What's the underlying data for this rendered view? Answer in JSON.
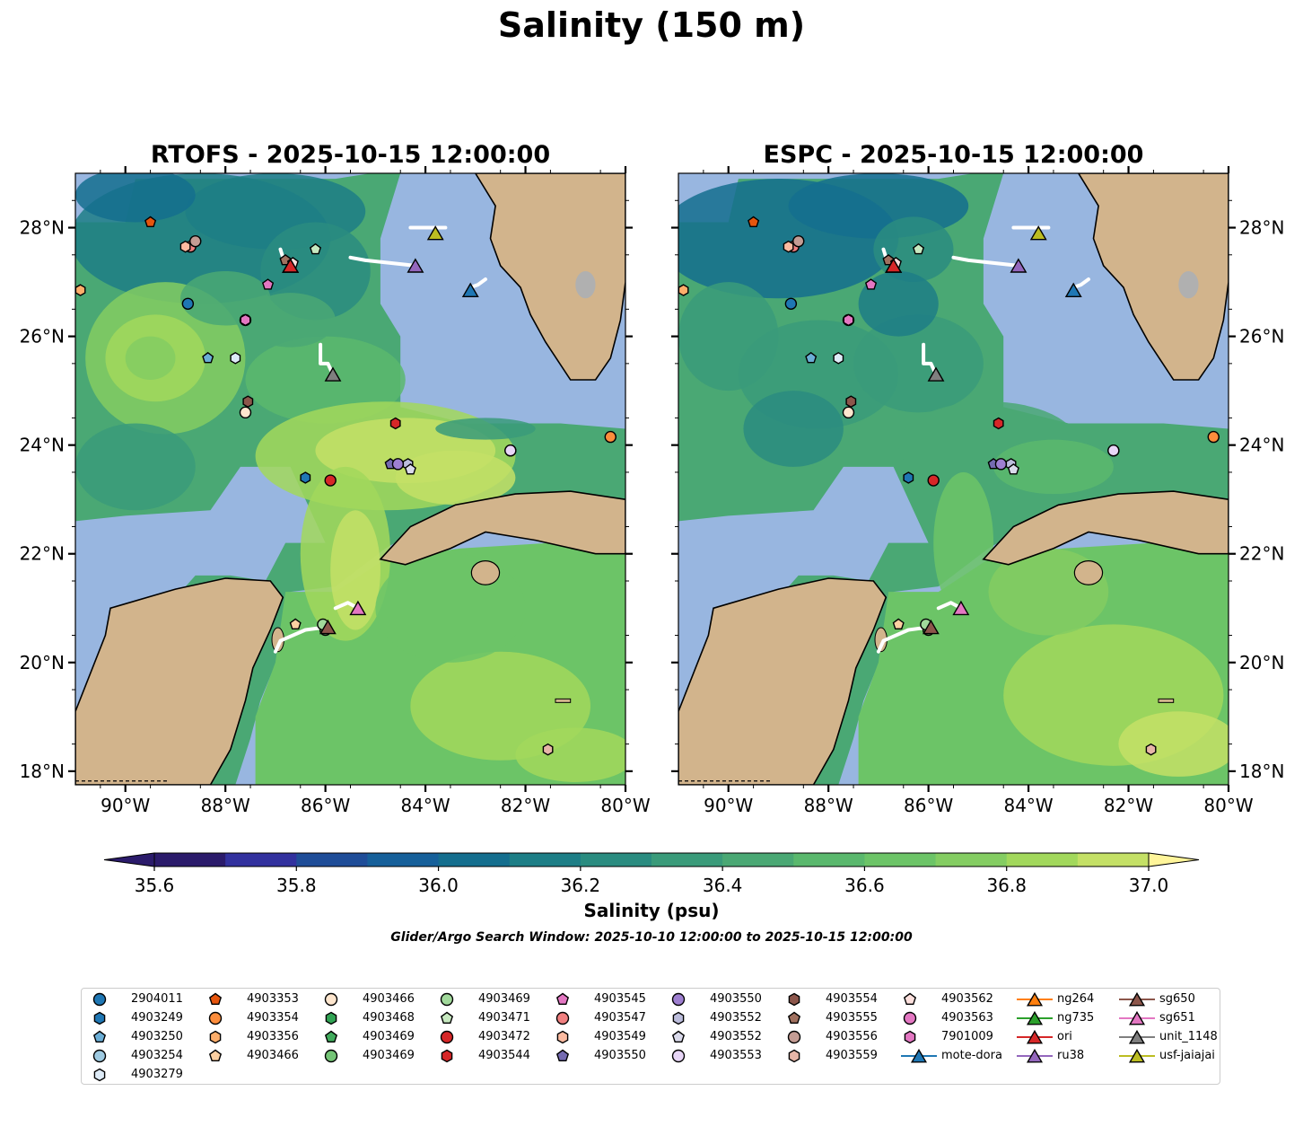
{
  "title": "Salinity (150 m)",
  "panels": [
    {
      "title": "RTOFS - 2025-10-15 12:00:00"
    },
    {
      "title": "ESPC - 2025-10-15 12:00:00"
    }
  ],
  "colors": {
    "ocean_fill": "#98b6e0",
    "land": "#d2b48c",
    "track": "#ffffff",
    "colormap": [
      "#2b1b6b",
      "#32319e",
      "#1f4d98",
      "#16609a",
      "#146e8e",
      "#1d7e86",
      "#2a8c80",
      "#3a9b7a",
      "#4aa874",
      "#5ab86d",
      "#6cc467",
      "#84cd62",
      "#a2d85c",
      "#c4e066",
      "#fff59a"
    ]
  },
  "chart_data": {
    "type": "filled-contour-map",
    "colorbar": {
      "label": "Salinity (psu)",
      "min": 35.6,
      "max": 37.0,
      "levels": [
        35.6,
        35.7,
        35.8,
        35.9,
        36.0,
        36.1,
        36.2,
        36.3,
        36.4,
        36.5,
        36.6,
        36.7,
        36.8,
        36.9,
        37.0
      ],
      "ticks": [
        "35.6",
        "35.8",
        "36.0",
        "36.2",
        "36.4",
        "36.6",
        "36.8",
        "37.0"
      ],
      "extend": "both"
    },
    "map_extent": {
      "lon": [
        -91,
        -80
      ],
      "lat": [
        17.75,
        29
      ]
    },
    "lon_ticks": [
      {
        "v": -90,
        "label": "90°W"
      },
      {
        "v": -88,
        "label": "88°W"
      },
      {
        "v": -86,
        "label": "86°W"
      },
      {
        "v": -84,
        "label": "84°W"
      },
      {
        "v": -82,
        "label": "82°W"
      },
      {
        "v": -80,
        "label": "80°W"
      }
    ],
    "lat_ticks": [
      {
        "v": 18,
        "label": "18°N"
      },
      {
        "v": 20,
        "label": "20°N"
      },
      {
        "v": 22,
        "label": "22°N"
      },
      {
        "v": 24,
        "label": "24°N"
      },
      {
        "v": 26,
        "label": "26°N"
      },
      {
        "v": 28,
        "label": "28°N"
      }
    ],
    "search_window": "Glider/Argo Search Window: 2025-10-10 12:00:00 to 2025-10-15 12:00:00",
    "platforms": [
      {
        "id": "2904011",
        "marker": "circle",
        "color": "#1f77b4",
        "lon": -88.75,
        "lat": 26.6
      },
      {
        "id": "4903249",
        "marker": "hexagon",
        "color": "#1f77b4",
        "lon": -86.4,
        "lat": 23.4
      },
      {
        "id": "4903250",
        "marker": "pentagon",
        "color": "#6baed6",
        "lon": -88.35,
        "lat": 25.6
      },
      {
        "id": "4903254",
        "marker": "circle",
        "color": "#9ecae1",
        "lon": -82.3,
        "lat": 23.9
      },
      {
        "id": "4903279",
        "marker": "hexagon",
        "color": "#deebf7",
        "lon": -87.8,
        "lat": 25.6
      },
      {
        "id": "4903353",
        "marker": "pentagon",
        "color": "#e6550d",
        "lon": -89.5,
        "lat": 28.1
      },
      {
        "id": "4903354",
        "marker": "circle",
        "color": "#fd8d3c",
        "lon": -80.3,
        "lat": 24.15
      },
      {
        "id": "4903356",
        "marker": "hexagon",
        "color": "#fdae6b",
        "lon": -90.9,
        "lat": 26.85
      },
      {
        "id": "4903466",
        "marker": "pentagon",
        "color": "#fdd0a2",
        "lon": -86.6,
        "lat": 20.7
      },
      {
        "id": "4903466",
        "marker": "circle",
        "color": "#fee6ce",
        "lon": -87.6,
        "lat": 24.6
      },
      {
        "id": "4903468",
        "marker": "hexagon",
        "color": "#31a354",
        "lon": -86.0,
        "lat": 20.6
      },
      {
        "id": "4903469",
        "marker": "pentagon",
        "color": "#41ab5d",
        "lon": -86.0,
        "lat": 20.65
      },
      {
        "id": "4903469",
        "marker": "circle",
        "color": "#74c476",
        "lon": -86.0,
        "lat": 20.6
      },
      {
        "id": "4903469",
        "marker": "circle",
        "color": "#a1d99b",
        "lon": -86.05,
        "lat": 20.7
      },
      {
        "id": "4903471",
        "marker": "pentagon",
        "color": "#c7e9c0",
        "lon": -86.2,
        "lat": 27.6
      },
      {
        "id": "4903472",
        "marker": "circle",
        "color": "#d62728",
        "lon": -85.9,
        "lat": 23.35
      },
      {
        "id": "4903544",
        "marker": "hexagon",
        "color": "#d62728",
        "lon": -84.6,
        "lat": 24.4
      },
      {
        "id": "4903545",
        "marker": "pentagon",
        "color": "#e377c2",
        "lon": -87.15,
        "lat": 26.95
      },
      {
        "id": "4903547",
        "marker": "circle",
        "color": "#f08080",
        "lon": -88.7,
        "lat": 27.65
      },
      {
        "id": "4903549",
        "marker": "hexagon",
        "color": "#fcbba1",
        "lon": -88.8,
        "lat": 27.65
      },
      {
        "id": "4903550",
        "marker": "pentagon",
        "color": "#756bb1",
        "lon": -84.7,
        "lat": 23.65
      },
      {
        "id": "4903550",
        "marker": "circle",
        "color": "#9e7fd0",
        "lon": -84.55,
        "lat": 23.65
      },
      {
        "id": "4903552",
        "marker": "hexagon",
        "color": "#bcbddc",
        "lon": -84.35,
        "lat": 23.65
      },
      {
        "id": "4903552",
        "marker": "pentagon",
        "color": "#dadaeb",
        "lon": -84.3,
        "lat": 23.55
      },
      {
        "id": "4903553",
        "marker": "circle",
        "color": "#e8d6f7",
        "lon": -82.3,
        "lat": 23.9
      },
      {
        "id": "4903554",
        "marker": "hexagon",
        "color": "#8c564b",
        "lon": -87.55,
        "lat": 24.8
      },
      {
        "id": "4903555",
        "marker": "pentagon",
        "color": "#a0705f",
        "lon": -86.8,
        "lat": 27.4
      },
      {
        "id": "4903556",
        "marker": "circle",
        "color": "#c49c94",
        "lon": -88.6,
        "lat": 27.75
      },
      {
        "id": "4903559",
        "marker": "hexagon",
        "color": "#e7b6a8",
        "lon": -81.55,
        "lat": 18.4
      },
      {
        "id": "4903562",
        "marker": "pentagon",
        "color": "#fde0dd",
        "lon": -86.65,
        "lat": 27.35
      },
      {
        "id": "4903563",
        "marker": "circle",
        "color": "#e377c2",
        "lon": -87.6,
        "lat": 26.3
      },
      {
        "id": "7901009",
        "marker": "hexagon",
        "color": "#e377c2",
        "lon": -87.6,
        "lat": 26.3
      },
      {
        "id": "mote-dora",
        "marker": "triangle",
        "color": "#1f77b4",
        "lon": -83.1,
        "lat": 26.85
      },
      {
        "id": "ng264",
        "marker": "triangle",
        "color": "#ff7f0e",
        "lon": -86.7,
        "lat": 27.3
      },
      {
        "id": "ng735",
        "marker": "triangle",
        "color": "#2ca02c",
        "lon": -86.7,
        "lat": 27.3
      },
      {
        "id": "ori",
        "marker": "triangle",
        "color": "#d62728",
        "lon": -86.7,
        "lat": 27.3
      },
      {
        "id": "ru38",
        "marker": "triangle",
        "color": "#9467bd",
        "lon": -84.2,
        "lat": 27.3
      },
      {
        "id": "sg650",
        "marker": "triangle",
        "color": "#8c564b",
        "lon": -85.95,
        "lat": 20.65
      },
      {
        "id": "sg651",
        "marker": "triangle",
        "color": "#e377c2",
        "lon": -85.35,
        "lat": 21.0
      },
      {
        "id": "unit_1148",
        "marker": "triangle",
        "color": "#7f7f7f",
        "lon": -85.85,
        "lat": 25.3
      },
      {
        "id": "usf-jaiajai",
        "marker": "triangle",
        "color": "#bcbd22",
        "lon": -83.8,
        "lat": 27.9
      }
    ],
    "legend_entries": [
      {
        "label": "2904011",
        "marker": "circle",
        "color": "#1f77b4"
      },
      {
        "label": "4903249",
        "marker": "hexagon",
        "color": "#1f77b4"
      },
      {
        "label": "4903250",
        "marker": "pentagon",
        "color": "#6baed6"
      },
      {
        "label": "4903254",
        "marker": "circle",
        "color": "#9ecae1"
      },
      {
        "label": "4903279",
        "marker": "hexagon",
        "color": "#deebf7"
      },
      {
        "label": "4903353",
        "marker": "pentagon",
        "color": "#e6550d"
      },
      {
        "label": "4903354",
        "marker": "circle",
        "color": "#fd8d3c"
      },
      {
        "label": "4903356",
        "marker": "hexagon",
        "color": "#fdae6b"
      },
      {
        "label": "4903466",
        "marker": "pentagon",
        "color": "#fdd0a2"
      },
      {
        "label": "4903466",
        "marker": "circle",
        "color": "#fee6ce"
      },
      {
        "label": "4903468",
        "marker": "hexagon",
        "color": "#31a354"
      },
      {
        "label": "4903469",
        "marker": "pentagon",
        "color": "#41ab5d"
      },
      {
        "label": "4903469",
        "marker": "circle",
        "color": "#74c476"
      },
      {
        "label": "4903469",
        "marker": "circle",
        "color": "#a1d99b"
      },
      {
        "label": "4903471",
        "marker": "pentagon",
        "color": "#c7e9c0"
      },
      {
        "label": "4903472",
        "marker": "circle",
        "color": "#d62728"
      },
      {
        "label": "4903544",
        "marker": "hexagon",
        "color": "#d62728"
      },
      {
        "label": "4903545",
        "marker": "pentagon",
        "color": "#e377c2"
      },
      {
        "label": "4903547",
        "marker": "circle",
        "color": "#f08080"
      },
      {
        "label": "4903549",
        "marker": "hexagon",
        "color": "#fcbba1"
      },
      {
        "label": "4903550",
        "marker": "pentagon",
        "color": "#756bb1"
      },
      {
        "label": "4903550",
        "marker": "circle",
        "color": "#9e7fd0"
      },
      {
        "label": "4903552",
        "marker": "hexagon",
        "color": "#bcbddc"
      },
      {
        "label": "4903552",
        "marker": "pentagon",
        "color": "#dadaeb"
      },
      {
        "label": "4903553",
        "marker": "circle",
        "color": "#e8d6f7"
      },
      {
        "label": "4903554",
        "marker": "hexagon",
        "color": "#8c564b"
      },
      {
        "label": "4903555",
        "marker": "pentagon",
        "color": "#a0705f"
      },
      {
        "label": "4903556",
        "marker": "circle",
        "color": "#c49c94"
      },
      {
        "label": "4903559",
        "marker": "hexagon",
        "color": "#e7b6a8"
      },
      {
        "label": "4903562",
        "marker": "pentagon",
        "color": "#fde0dd"
      },
      {
        "label": "4903563",
        "marker": "circle",
        "color": "#e377c2"
      },
      {
        "label": "7901009",
        "marker": "hexagon",
        "color": "#e377c2"
      },
      {
        "label": "mote-dora",
        "marker": "triangle-line",
        "color": "#1f77b4"
      },
      {
        "label": "ng264",
        "marker": "triangle-line",
        "color": "#ff7f0e"
      },
      {
        "label": "ng735",
        "marker": "triangle-line",
        "color": "#2ca02c"
      },
      {
        "label": "ori",
        "marker": "triangle-line",
        "color": "#d62728"
      },
      {
        "label": "ru38",
        "marker": "triangle-line",
        "color": "#9467bd"
      },
      {
        "label": "sg650",
        "marker": "triangle-line",
        "color": "#8c564b"
      },
      {
        "label": "sg651",
        "marker": "triangle-line",
        "color": "#e377c2"
      },
      {
        "label": "unit_1148",
        "marker": "triangle-line",
        "color": "#7f7f7f"
      },
      {
        "label": "usf-jaiajai",
        "marker": "triangle-line",
        "color": "#bcbd22"
      }
    ]
  }
}
